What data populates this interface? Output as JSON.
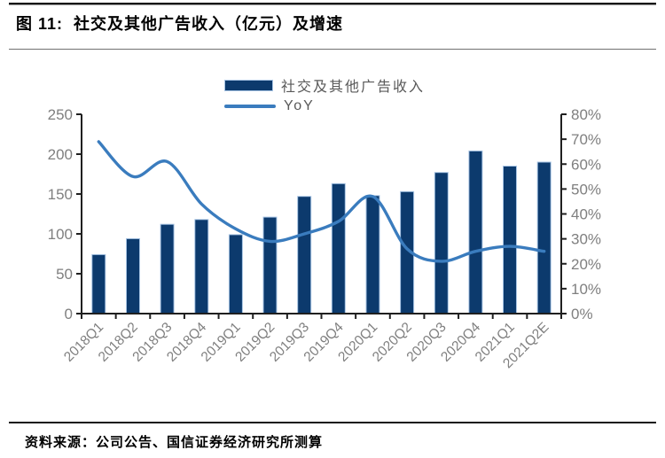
{
  "header": {
    "title": "图 11:  社交及其他广告收入（亿元）及增速"
  },
  "footer": {
    "source": "资料来源：公司公告、国信证券经济研究所测算"
  },
  "chart_data": {
    "type": "bar",
    "subtype": "bar+line-combo",
    "title": "社交及其他广告收入（亿元）及增速",
    "categories": [
      "2018Q1",
      "2018Q2",
      "2018Q3",
      "2018Q4",
      "2019Q1",
      "2019Q2",
      "2019Q3",
      "2019Q4",
      "2020Q1",
      "2020Q2",
      "2020Q3",
      "2020Q4",
      "2021Q1",
      "2021Q2E"
    ],
    "series": [
      {
        "name": "社交及其他广告收入",
        "type": "bar",
        "axis": "left",
        "unit": "亿元",
        "color": "#0C3A6D",
        "edge_color": "#A6C3E3",
        "values": [
          74,
          94,
          112,
          118,
          99,
          121,
          147,
          163,
          148,
          153,
          177,
          204,
          185,
          190
        ]
      },
      {
        "name": "YoY",
        "type": "line",
        "axis": "right",
        "unit": "%",
        "color": "#3A7CBE",
        "smooth": true,
        "values": [
          69,
          55,
          61,
          44,
          34,
          29,
          32,
          37,
          47,
          26,
          21,
          25,
          27,
          25
        ]
      }
    ],
    "left_axis": {
      "min": 0,
      "max": 250,
      "step": 50,
      "ticks": [
        "0",
        "50",
        "100",
        "150",
        "200",
        "250"
      ]
    },
    "right_axis": {
      "min": 0,
      "max": 80,
      "step": 10,
      "ticks": [
        "0%",
        "10%",
        "20%",
        "30%",
        "40%",
        "50%",
        "60%",
        "70%",
        "80%"
      ]
    },
    "legend": {
      "position": "top-center",
      "entries": [
        "社交及其他广告收入",
        "YoY"
      ]
    },
    "grid": false,
    "axis_label_color": "#7f7f7f",
    "axis_line_color": "#1f1f1f",
    "x_label_rotation": -45
  }
}
